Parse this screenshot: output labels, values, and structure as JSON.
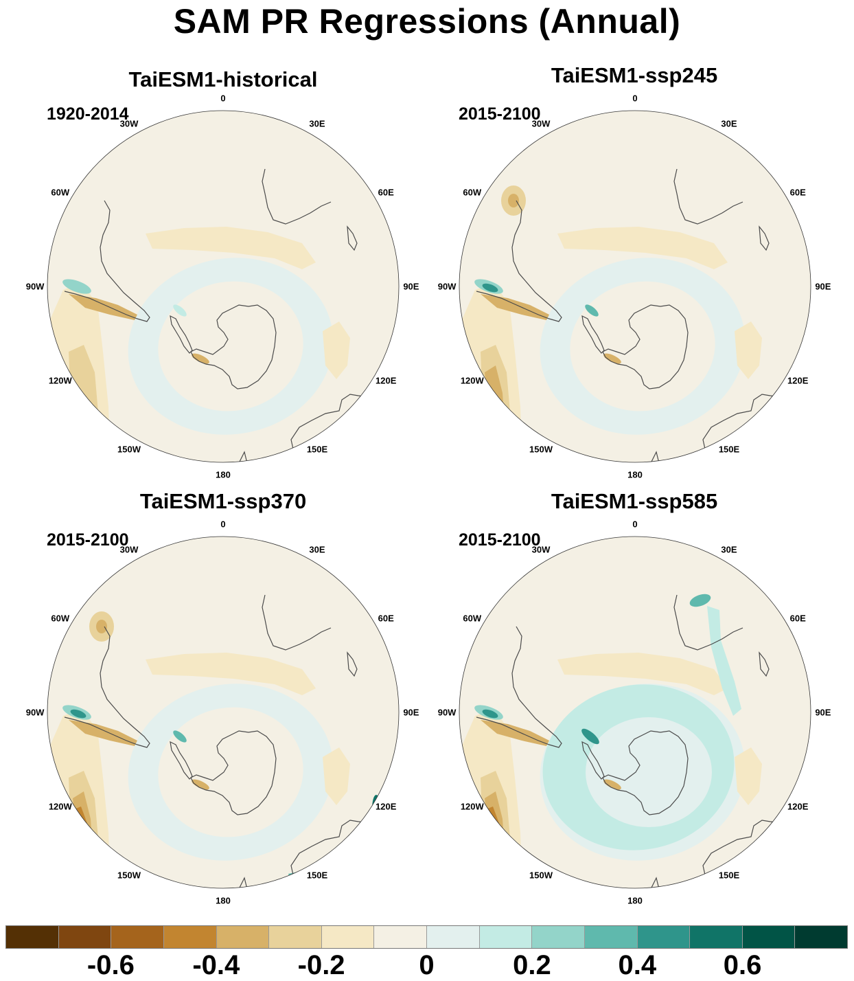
{
  "title": "SAM PR Regressions (Annual)",
  "panels": [
    {
      "title": "TaiESM1-historical",
      "period": "1920-2014",
      "pattern": "historical"
    },
    {
      "title": "TaiESM1-ssp245",
      "period": "2015-2100",
      "pattern": "ssp245"
    },
    {
      "title": "TaiESM1-ssp370",
      "period": "2015-2100",
      "pattern": "ssp370"
    },
    {
      "title": "TaiESM1-ssp585",
      "period": "2015-2100",
      "pattern": "ssp585"
    }
  ],
  "longitude_labels": [
    "0",
    "30E",
    "60E",
    "90E",
    "120E",
    "150E",
    "180",
    "150W",
    "120W",
    "90W",
    "60W",
    "30W"
  ],
  "colorbar": {
    "colors": [
      "#543005",
      "#7f4610",
      "#a5641c",
      "#c28530",
      "#d7b168",
      "#e8d29b",
      "#f5e8c5",
      "#f4f0e4",
      "#e3f0ee",
      "#c3ebe4",
      "#93d4c9",
      "#5fb9ad",
      "#2f958b",
      "#107467",
      "#015446",
      "#003b30"
    ],
    "tick_labels": [
      "-0.6",
      "-0.4",
      "-0.2",
      "0",
      "0.2",
      "0.4",
      "0.6"
    ]
  }
}
